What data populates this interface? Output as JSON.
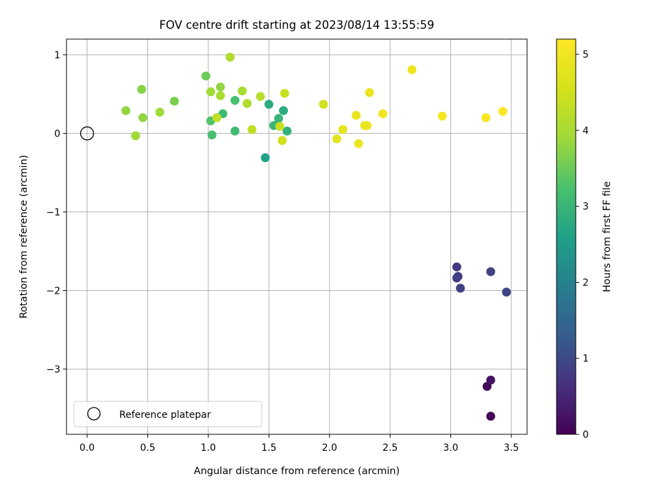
{
  "chart_data": {
    "type": "scatter",
    "title": "FOV centre drift starting at 2023/08/14 13:55:59",
    "xlabel": "Angular distance from reference (arcmin)",
    "ylabel": "Rotation from reference (arcmin)",
    "xlim": [
      -0.17,
      3.63
    ],
    "ylim": [
      -3.83,
      1.2
    ],
    "xticks": [
      0.0,
      0.5,
      1.0,
      1.5,
      2.0,
      2.5,
      3.0,
      3.5
    ],
    "xtick_labels": [
      "0.0",
      "0.5",
      "1.0",
      "1.5",
      "2.0",
      "2.5",
      "3.0",
      "3.5"
    ],
    "yticks": [
      1,
      0,
      -1,
      -2,
      -3
    ],
    "ytick_labels": [
      "1",
      "0",
      "−1",
      "−2",
      "−3"
    ],
    "grid": true,
    "legend": {
      "label": "Reference platepar",
      "placement": "lower-left"
    },
    "reference_point": {
      "x": 0.0,
      "y": 0.0
    },
    "colorbar": {
      "label": "Hours from first FF file",
      "min": 0,
      "max": 5.2,
      "ticks": [
        0,
        1,
        2,
        3,
        4,
        5
      ],
      "tick_labels": [
        "0",
        "1",
        "2",
        "3",
        "4",
        "5"
      ],
      "colormap": "viridis"
    },
    "points": [
      {
        "x": 3.33,
        "y": -3.6,
        "h": 0.05
      },
      {
        "x": 3.3,
        "y": -3.22,
        "h": 0.1
      },
      {
        "x": 3.33,
        "y": -3.14,
        "h": 0.25
      },
      {
        "x": 3.05,
        "y": -1.7,
        "h": 0.75
      },
      {
        "x": 3.06,
        "y": -1.82,
        "h": 0.8
      },
      {
        "x": 3.05,
        "y": -1.84,
        "h": 0.85
      },
      {
        "x": 3.08,
        "y": -1.97,
        "h": 0.9
      },
      {
        "x": 3.33,
        "y": -1.76,
        "h": 0.9
      },
      {
        "x": 3.46,
        "y": -2.02,
        "h": 0.95
      },
      {
        "x": 1.47,
        "y": -0.31,
        "h": 2.6
      },
      {
        "x": 1.5,
        "y": 0.37,
        "h": 2.8
      },
      {
        "x": 1.62,
        "y": 0.29,
        "h": 2.8
      },
      {
        "x": 1.58,
        "y": 0.19,
        "h": 3.0
      },
      {
        "x": 1.54,
        "y": 0.1,
        "h": 3.0
      },
      {
        "x": 1.65,
        "y": 0.03,
        "h": 2.9
      },
      {
        "x": 1.12,
        "y": 0.25,
        "h": 3.1
      },
      {
        "x": 1.22,
        "y": 0.42,
        "h": 3.2
      },
      {
        "x": 1.22,
        "y": 0.03,
        "h": 3.1
      },
      {
        "x": 1.02,
        "y": 0.16,
        "h": 3.3
      },
      {
        "x": 1.03,
        "y": -0.02,
        "h": 3.2
      },
      {
        "x": 0.98,
        "y": 0.73,
        "h": 3.5
      },
      {
        "x": 0.72,
        "y": 0.41,
        "h": 3.6
      },
      {
        "x": 0.45,
        "y": 0.56,
        "h": 3.7
      },
      {
        "x": 0.32,
        "y": 0.29,
        "h": 3.8
      },
      {
        "x": 0.46,
        "y": 0.2,
        "h": 3.8
      },
      {
        "x": 0.6,
        "y": 0.27,
        "h": 3.9
      },
      {
        "x": 0.4,
        "y": -0.03,
        "h": 3.9
      },
      {
        "x": 1.02,
        "y": 0.53,
        "h": 3.9
      },
      {
        "x": 1.1,
        "y": 0.59,
        "h": 3.8
      },
      {
        "x": 1.1,
        "y": 0.48,
        "h": 4.0
      },
      {
        "x": 1.28,
        "y": 0.54,
        "h": 4.0
      },
      {
        "x": 1.18,
        "y": 0.97,
        "h": 4.1
      },
      {
        "x": 1.32,
        "y": 0.38,
        "h": 4.1
      },
      {
        "x": 1.43,
        "y": 0.47,
        "h": 4.2
      },
      {
        "x": 1.07,
        "y": 0.2,
        "h": 4.3
      },
      {
        "x": 1.36,
        "y": 0.05,
        "h": 4.3
      },
      {
        "x": 1.63,
        "y": 0.51,
        "h": 4.4
      },
      {
        "x": 1.59,
        "y": 0.09,
        "h": 4.4
      },
      {
        "x": 1.61,
        "y": -0.09,
        "h": 4.5
      },
      {
        "x": 1.95,
        "y": 0.37,
        "h": 4.5
      },
      {
        "x": 2.06,
        "y": -0.07,
        "h": 4.8
      },
      {
        "x": 2.11,
        "y": 0.05,
        "h": 4.8
      },
      {
        "x": 2.22,
        "y": 0.23,
        "h": 4.9
      },
      {
        "x": 2.24,
        "y": -0.13,
        "h": 4.9
      },
      {
        "x": 2.29,
        "y": 0.1,
        "h": 4.9
      },
      {
        "x": 2.31,
        "y": 0.1,
        "h": 4.9
      },
      {
        "x": 2.33,
        "y": 0.52,
        "h": 4.9
      },
      {
        "x": 2.44,
        "y": 0.25,
        "h": 5.0
      },
      {
        "x": 2.68,
        "y": 0.81,
        "h": 5.0
      },
      {
        "x": 2.93,
        "y": 0.22,
        "h": 5.1
      },
      {
        "x": 3.29,
        "y": 0.2,
        "h": 5.1
      },
      {
        "x": 3.43,
        "y": 0.28,
        "h": 5.2
      }
    ]
  }
}
